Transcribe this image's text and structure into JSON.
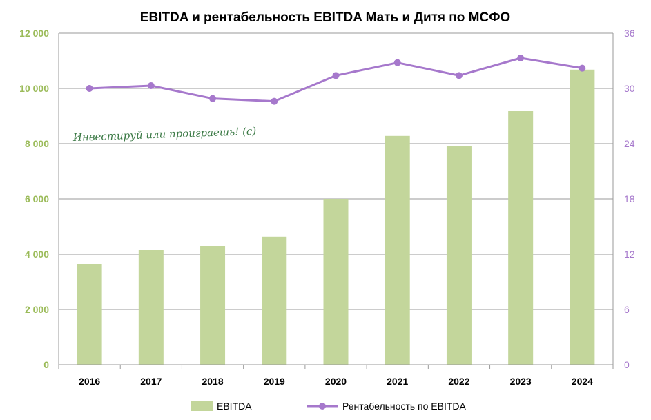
{
  "chart_data": {
    "type": "bar+line",
    "title": "EBITDA и рентабельность EBITDA Мать и Дитя по МСФО",
    "categories": [
      "2016",
      "2017",
      "2018",
      "2019",
      "2020",
      "2021",
      "2022",
      "2023",
      "2024"
    ],
    "series": [
      {
        "name": "EBITDA",
        "type": "bar",
        "axis": "left",
        "color": "#c3d69b",
        "values": [
          3650,
          4150,
          4300,
          4630,
          6000,
          8280,
          7900,
          9200,
          10680
        ]
      },
      {
        "name": "Рентабельность по EBITDA",
        "type": "line",
        "axis": "right",
        "color": "#a678cc",
        "values": [
          30.0,
          30.3,
          28.9,
          28.6,
          31.4,
          32.8,
          31.4,
          33.3,
          32.2
        ]
      }
    ],
    "y_left": {
      "range": [
        0,
        12000
      ],
      "ticks": [
        "0",
        "2 000",
        "4 000",
        "6 000",
        "8 000",
        "10 000",
        "12 000"
      ],
      "tick_values": [
        0,
        2000,
        4000,
        6000,
        8000,
        10000,
        12000
      ],
      "color": "#9bbb59"
    },
    "y_right": {
      "range": [
        0,
        36
      ],
      "ticks": [
        "0",
        "6",
        "12",
        "18",
        "24",
        "30",
        "36"
      ],
      "tick_values": [
        0,
        6,
        12,
        18,
        24,
        30,
        36
      ],
      "color": "#a678cc"
    },
    "grid": true,
    "legend_position": "bottom",
    "annotation": "Инвестируй или проиграешь! (с)"
  },
  "colors": {
    "grid": "#9a9a9a",
    "bar": "#c3d69b",
    "line": "#a678cc"
  }
}
